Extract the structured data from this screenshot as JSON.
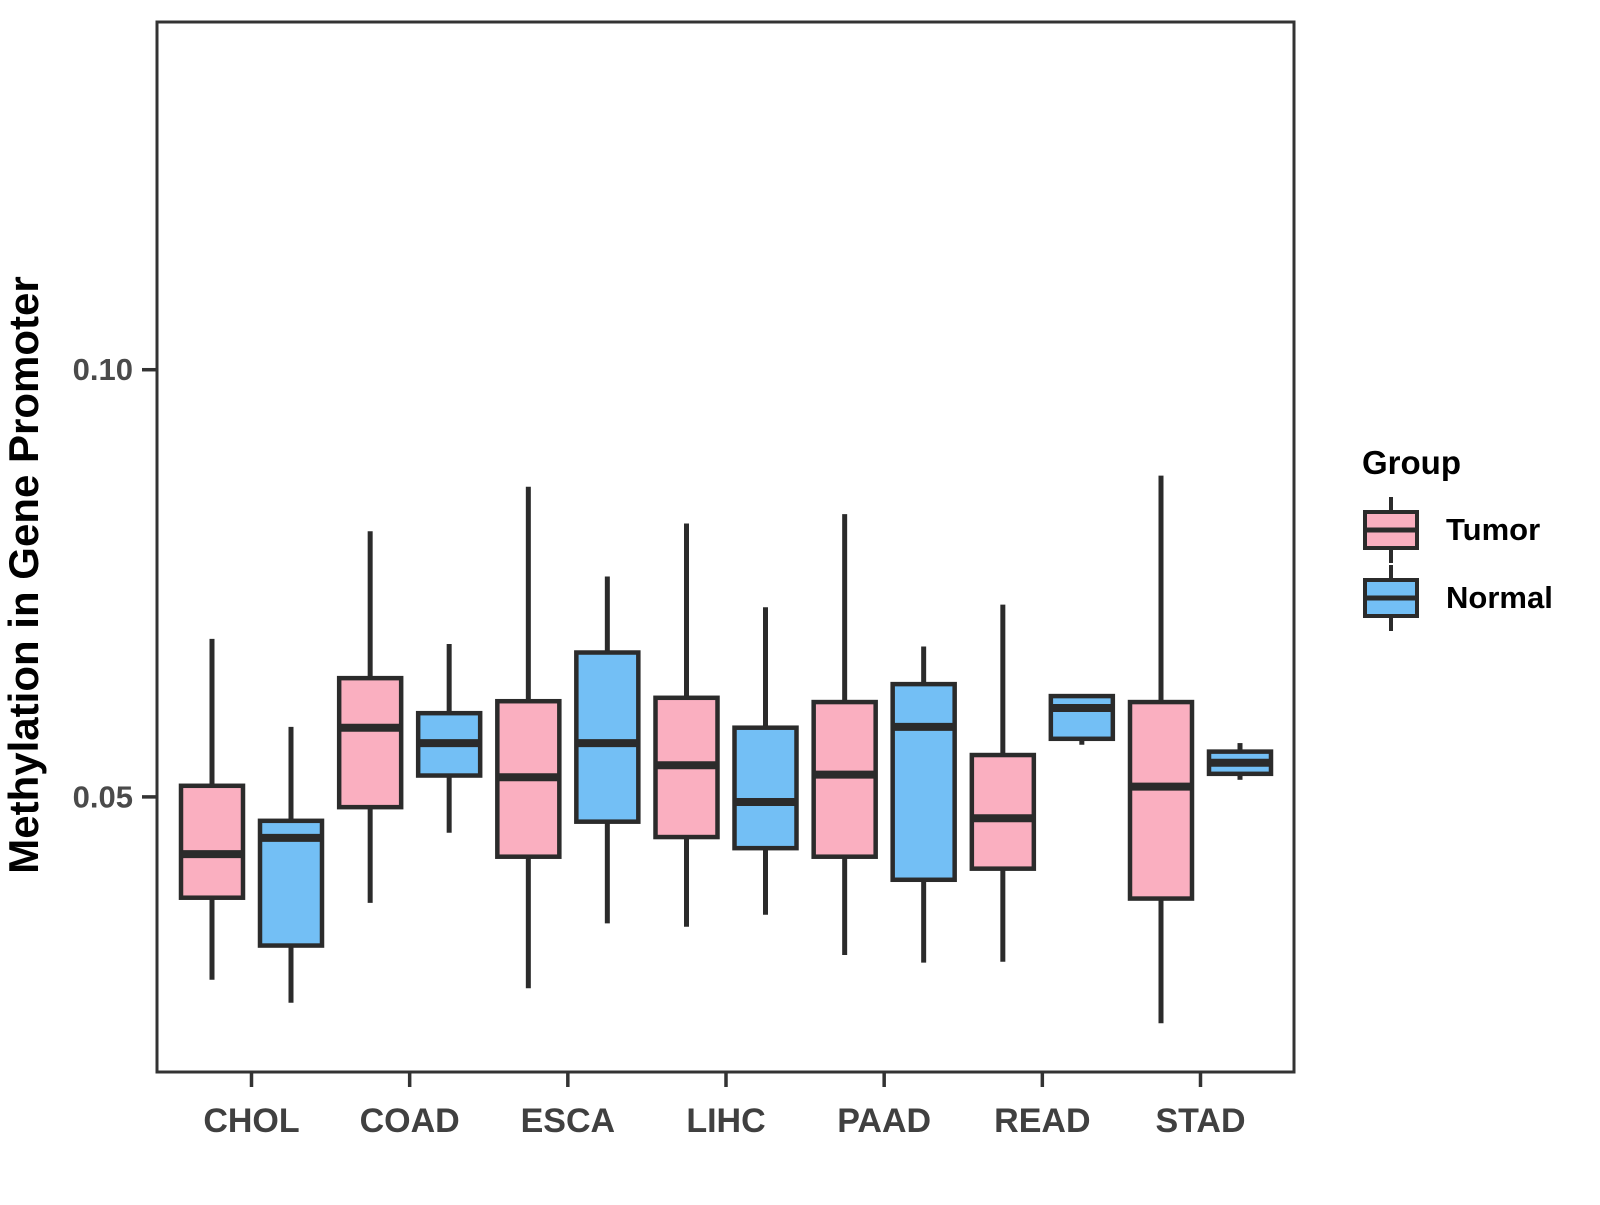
{
  "figure": {
    "background": "#FFFFFF",
    "panel_border_color": "#333333",
    "box_stroke_color": "#2B2B2B",
    "tick_color": "#333333",
    "axis_text_color": "#4A4A4A",
    "x_label_color": "#404040"
  },
  "y_axis": {
    "title": "Methylation in Gene Promoter",
    "ticks": [
      {
        "value": 0.05,
        "label": "0.05"
      },
      {
        "value": 0.1,
        "label": "0.10"
      }
    ]
  },
  "x_axis": {
    "categories": [
      "CHOL",
      "COAD",
      "ESCA",
      "LIHC",
      "PAAD",
      "READ",
      "STAD"
    ]
  },
  "legend": {
    "title": "Group",
    "items": [
      {
        "label": "Tumor",
        "color": "#FAAFC0"
      },
      {
        "label": "Normal",
        "color": "#73BFF5"
      }
    ]
  },
  "chart_data": {
    "type": "boxplot",
    "title": "",
    "xlabel": "",
    "ylabel": "Methylation in Gene Promoter",
    "ylim": [
      0.0178,
      0.1407
    ],
    "grid": false,
    "legend_position": "right",
    "categories": [
      "CHOL",
      "COAD",
      "ESCA",
      "LIHC",
      "PAAD",
      "READ",
      "STAD"
    ],
    "series": [
      {
        "name": "Tumor",
        "color": "#FAAFC0",
        "boxes": [
          {
            "min": 0.0286,
            "q1": 0.0382,
            "median": 0.0433,
            "q3": 0.0513,
            "max": 0.0685
          },
          {
            "min": 0.0376,
            "q1": 0.0488,
            "median": 0.0581,
            "q3": 0.0639,
            "max": 0.0811
          },
          {
            "min": 0.0276,
            "q1": 0.043,
            "median": 0.0523,
            "q3": 0.0612,
            "max": 0.0863
          },
          {
            "min": 0.0348,
            "q1": 0.0453,
            "median": 0.0537,
            "q3": 0.0616,
            "max": 0.082
          },
          {
            "min": 0.0315,
            "q1": 0.043,
            "median": 0.0526,
            "q3": 0.0611,
            "max": 0.0831
          },
          {
            "min": 0.0307,
            "q1": 0.0416,
            "median": 0.0475,
            "q3": 0.0549,
            "max": 0.0725
          },
          {
            "min": 0.0235,
            "q1": 0.0381,
            "median": 0.0512,
            "q3": 0.0611,
            "max": 0.0876
          }
        ]
      },
      {
        "name": "Normal",
        "color": "#73BFF5",
        "boxes": [
          {
            "min": 0.0259,
            "q1": 0.0326,
            "median": 0.0452,
            "q3": 0.0472,
            "max": 0.0582
          },
          {
            "min": 0.0458,
            "q1": 0.0525,
            "median": 0.0563,
            "q3": 0.0598,
            "max": 0.0679
          },
          {
            "min": 0.0352,
            "q1": 0.0471,
            "median": 0.0563,
            "q3": 0.0669,
            "max": 0.0758
          },
          {
            "min": 0.0362,
            "q1": 0.044,
            "median": 0.0494,
            "q3": 0.0581,
            "max": 0.0722
          },
          {
            "min": 0.0306,
            "q1": 0.0403,
            "median": 0.0582,
            "q3": 0.0632,
            "max": 0.0676
          },
          {
            "min": 0.0561,
            "q1": 0.0568,
            "median": 0.0604,
            "q3": 0.0618,
            "max": 0.0618
          },
          {
            "min": 0.052,
            "q1": 0.0527,
            "median": 0.054,
            "q3": 0.0553,
            "max": 0.0563
          }
        ]
      }
    ]
  }
}
